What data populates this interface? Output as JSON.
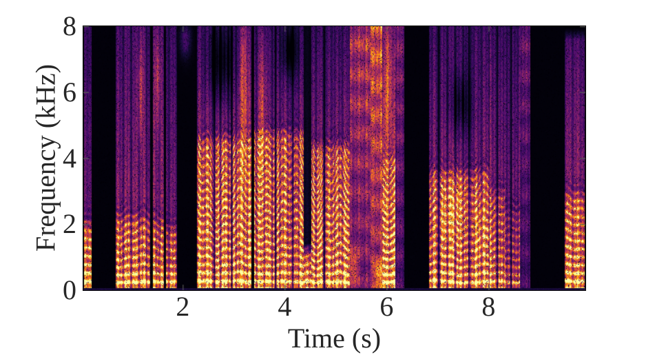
{
  "figure": {
    "background": "#ffffff",
    "text_color": "#262626",
    "border_color": "#0a0a0a"
  },
  "chart_data": {
    "type": "heatmap",
    "subtype": "speech-spectrogram",
    "title": "",
    "xlabel": "Time (s)",
    "ylabel": "Frequency (kHz)",
    "xlim": [
      0.05,
      9.9
    ],
    "ylim": [
      0,
      8
    ],
    "x_ticks": [
      2,
      4,
      6,
      8
    ],
    "y_ticks": [
      0,
      2,
      4,
      6,
      8
    ],
    "grid": false,
    "legend": "none",
    "style": {
      "axis_color": "#262626",
      "tick_color": "#5a5a5a",
      "tick_dir": "in"
    },
    "colormap": {
      "name": "inferno",
      "stops": [
        "#000004",
        "#160b39",
        "#420a68",
        "#6a176e",
        "#932667",
        "#bc3754",
        "#dd513a",
        "#f37819",
        "#fca50a",
        "#f6d543",
        "#fcffa4"
      ]
    },
    "f0_hz": 250,
    "dc_strip": {
      "level": 0.1,
      "rows": 3
    },
    "segments": [
      {
        "t0": 0.06,
        "t1": 0.2,
        "kind": "voiced",
        "level": 0.95,
        "f_voiced": 2.0,
        "top_level": 0.3,
        "stri": 0.2,
        "wobble": 0.4
      },
      {
        "t0": 0.2,
        "t1": 0.68,
        "kind": "silence"
      },
      {
        "t0": 0.68,
        "t1": 1.36,
        "kind": "voiced",
        "level": 0.82,
        "f_voiced": 2.2,
        "top_level": 0.34,
        "stri": 0.5,
        "wobble": 0.6,
        "blobs": [
          {
            "t": 1.17,
            "f": 6.2,
            "st": 0.05,
            "sf": 1.6,
            "a": 0.28
          }
        ]
      },
      {
        "t0": 1.36,
        "t1": 1.41,
        "kind": "silence"
      },
      {
        "t0": 1.41,
        "t1": 1.63,
        "kind": "voiced",
        "level": 0.78,
        "f_voiced": 2.1,
        "top_level": 0.36,
        "stri": 0.4,
        "wobble": 0.5,
        "blobs": [
          {
            "t": 1.5,
            "f": 6.5,
            "st": 0.05,
            "sf": 1.5,
            "a": 0.26
          }
        ]
      },
      {
        "t0": 1.63,
        "t1": 1.67,
        "kind": "silence"
      },
      {
        "t0": 1.67,
        "t1": 1.89,
        "kind": "voiced",
        "level": 0.74,
        "f_voiced": 1.9,
        "top_level": 0.3,
        "stri": 0.4,
        "wobble": 0.5
      },
      {
        "t0": 1.89,
        "t1": 2.27,
        "kind": "silence",
        "blobs": [
          {
            "t": 2.05,
            "f": 7.6,
            "st": 0.1,
            "sf": 0.5,
            "a": 0.2
          }
        ]
      },
      {
        "t0": 2.27,
        "t1": 3.34,
        "kind": "voiced",
        "level": 0.9,
        "f_voiced": 4.6,
        "top_level": 0.34,
        "stri": 0.45,
        "wobble": 0.9,
        "gaps": [
          2.62,
          2.96
        ],
        "blobs": [
          {
            "t": 2.75,
            "f": 6.8,
            "st": 0.26,
            "sf": 1.3,
            "a": -0.24
          },
          {
            "t": 3.2,
            "f": 6.0,
            "st": 0.08,
            "sf": 2.6,
            "a": 0.34
          }
        ]
      },
      {
        "t0": 3.34,
        "t1": 3.4,
        "kind": "silence"
      },
      {
        "t0": 3.4,
        "t1": 4.37,
        "kind": "voiced",
        "level": 0.86,
        "f_voiced": 4.8,
        "top_level": 0.3,
        "stri": 0.45,
        "wobble": 0.8,
        "gaps": [
          3.82,
          4.16
        ],
        "blobs": [
          {
            "t": 3.56,
            "f": 5.5,
            "st": 0.06,
            "sf": 2.4,
            "a": 0.3
          },
          {
            "t": 4.1,
            "f": 7.2,
            "st": 0.18,
            "sf": 0.8,
            "a": -0.18
          }
        ]
      },
      {
        "t0": 4.37,
        "t1": 4.52,
        "kind": "voiced",
        "level": 0.82,
        "f_voiced": 1.2,
        "top_level": 0.06,
        "stri": 0.3,
        "wobble": 0.5
      },
      {
        "t0": 4.52,
        "t1": 5.28,
        "kind": "voiced",
        "level": 0.86,
        "f_voiced": 4.4,
        "top_level": 0.3,
        "stri": 0.4,
        "wobble": 1.1,
        "gaps": [
          4.78
        ]
      },
      {
        "t0": 5.28,
        "t1": 5.68,
        "kind": "fric",
        "level": 0.44,
        "blobs": [
          {
            "t": 5.36,
            "f": 0.7,
            "st": 0.09,
            "sf": 0.6,
            "a": 0.3
          }
        ]
      },
      {
        "t0": 5.68,
        "t1": 5.92,
        "kind": "fric",
        "level": 0.55,
        "blobs": [
          {
            "t": 5.85,
            "f": 0.4,
            "st": 0.1,
            "sf": 0.45,
            "a": 0.42
          }
        ]
      },
      {
        "t0": 5.92,
        "t1": 6.17,
        "kind": "voiced",
        "level": 0.92,
        "f_voiced": 4.0,
        "top_level": 0.45,
        "stri": 0.35,
        "wobble": 0.6,
        "blobs": [
          {
            "t": 6.03,
            "f": 6.5,
            "st": 0.07,
            "sf": 2.0,
            "a": 0.3
          }
        ]
      },
      {
        "t0": 6.17,
        "t1": 6.35,
        "kind": "fric",
        "level": 0.32
      },
      {
        "t0": 6.35,
        "t1": 6.83,
        "kind": "silence"
      },
      {
        "t0": 6.83,
        "t1": 8.02,
        "kind": "voiced",
        "level": 0.82,
        "f_voiced": 3.6,
        "top_level": 0.32,
        "stri": 0.55,
        "wobble": 0.7,
        "gaps": [
          7.02,
          7.62
        ],
        "blobs": [
          {
            "t": 7.3,
            "f": 2.4,
            "st": 0.3,
            "sf": 0.9,
            "a": 0.2
          },
          {
            "t": 7.45,
            "f": 5.6,
            "st": 0.22,
            "sf": 1.0,
            "a": -0.2
          },
          {
            "t": 7.85,
            "f": 1.8,
            "st": 0.12,
            "sf": 0.8,
            "a": 0.15
          }
        ]
      },
      {
        "t0": 8.02,
        "t1": 8.32,
        "kind": "voiced",
        "level": 0.82,
        "f_voiced": 3.0,
        "top_level": 0.36,
        "stri": 0.45,
        "wobble": 0.6,
        "gaps": [
          8.18
        ]
      },
      {
        "t0": 8.32,
        "t1": 8.62,
        "kind": "voiced",
        "level": 0.62,
        "f_voiced": 2.4,
        "top_level": 0.34,
        "stri": 0.45,
        "wobble": 0.6,
        "gaps": [
          8.45
        ]
      },
      {
        "t0": 8.62,
        "t1": 8.82,
        "kind": "fric",
        "level": 0.28
      },
      {
        "t0": 8.82,
        "t1": 9.5,
        "kind": "silence"
      },
      {
        "t0": 9.5,
        "t1": 9.9,
        "kind": "voiced",
        "level": 0.88,
        "f_voiced": 2.9,
        "top_level": 0.36,
        "stri": 0.3,
        "wobble": 0.4,
        "top_fade": 7.6
      }
    ]
  }
}
